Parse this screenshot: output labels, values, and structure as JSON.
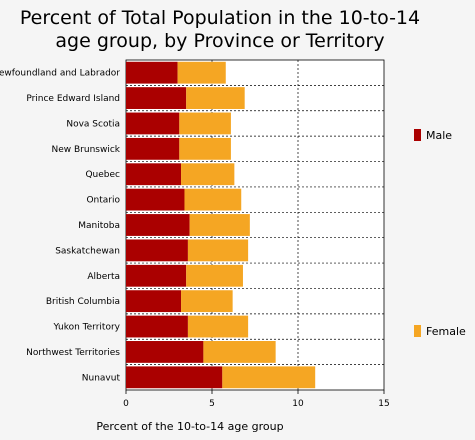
{
  "chart_data": {
    "type": "bar",
    "orientation": "horizontal",
    "stacked": true,
    "title": "Percent of Total Population in the 10-to-14 age group, by Province or Territory",
    "title_lines": [
      "Percent of Total Population in the 10-to-14",
      "age group, by Province or Territory"
    ],
    "xlabel": "Percent of the 10-to-14 age group",
    "ylabel": "",
    "xlim": [
      0,
      15
    ],
    "xticks": [
      "0",
      "5",
      "10",
      "15"
    ],
    "grid": true,
    "legend_placement": "right",
    "categories": [
      "Newfoundland and Labrador",
      "Prince Edward Island",
      "Nova Scotia",
      "New Brunswick",
      "Quebec",
      "Ontario",
      "Manitoba",
      "Saskatchewan",
      "Alberta",
      "British Columbia",
      "Yukon Territory",
      "Northwest Territories",
      "Nunavut"
    ],
    "series": [
      {
        "name": "Male",
        "color": "#aa0000",
        "values": [
          3.0,
          3.5,
          3.1,
          3.1,
          3.2,
          3.4,
          3.7,
          3.6,
          3.5,
          3.2,
          3.6,
          4.5,
          5.6
        ]
      },
      {
        "name": "Female",
        "color": "#f5a623",
        "values": [
          2.8,
          3.4,
          3.0,
          3.0,
          3.1,
          3.3,
          3.5,
          3.5,
          3.3,
          3.0,
          3.5,
          4.2,
          5.4
        ]
      }
    ]
  }
}
